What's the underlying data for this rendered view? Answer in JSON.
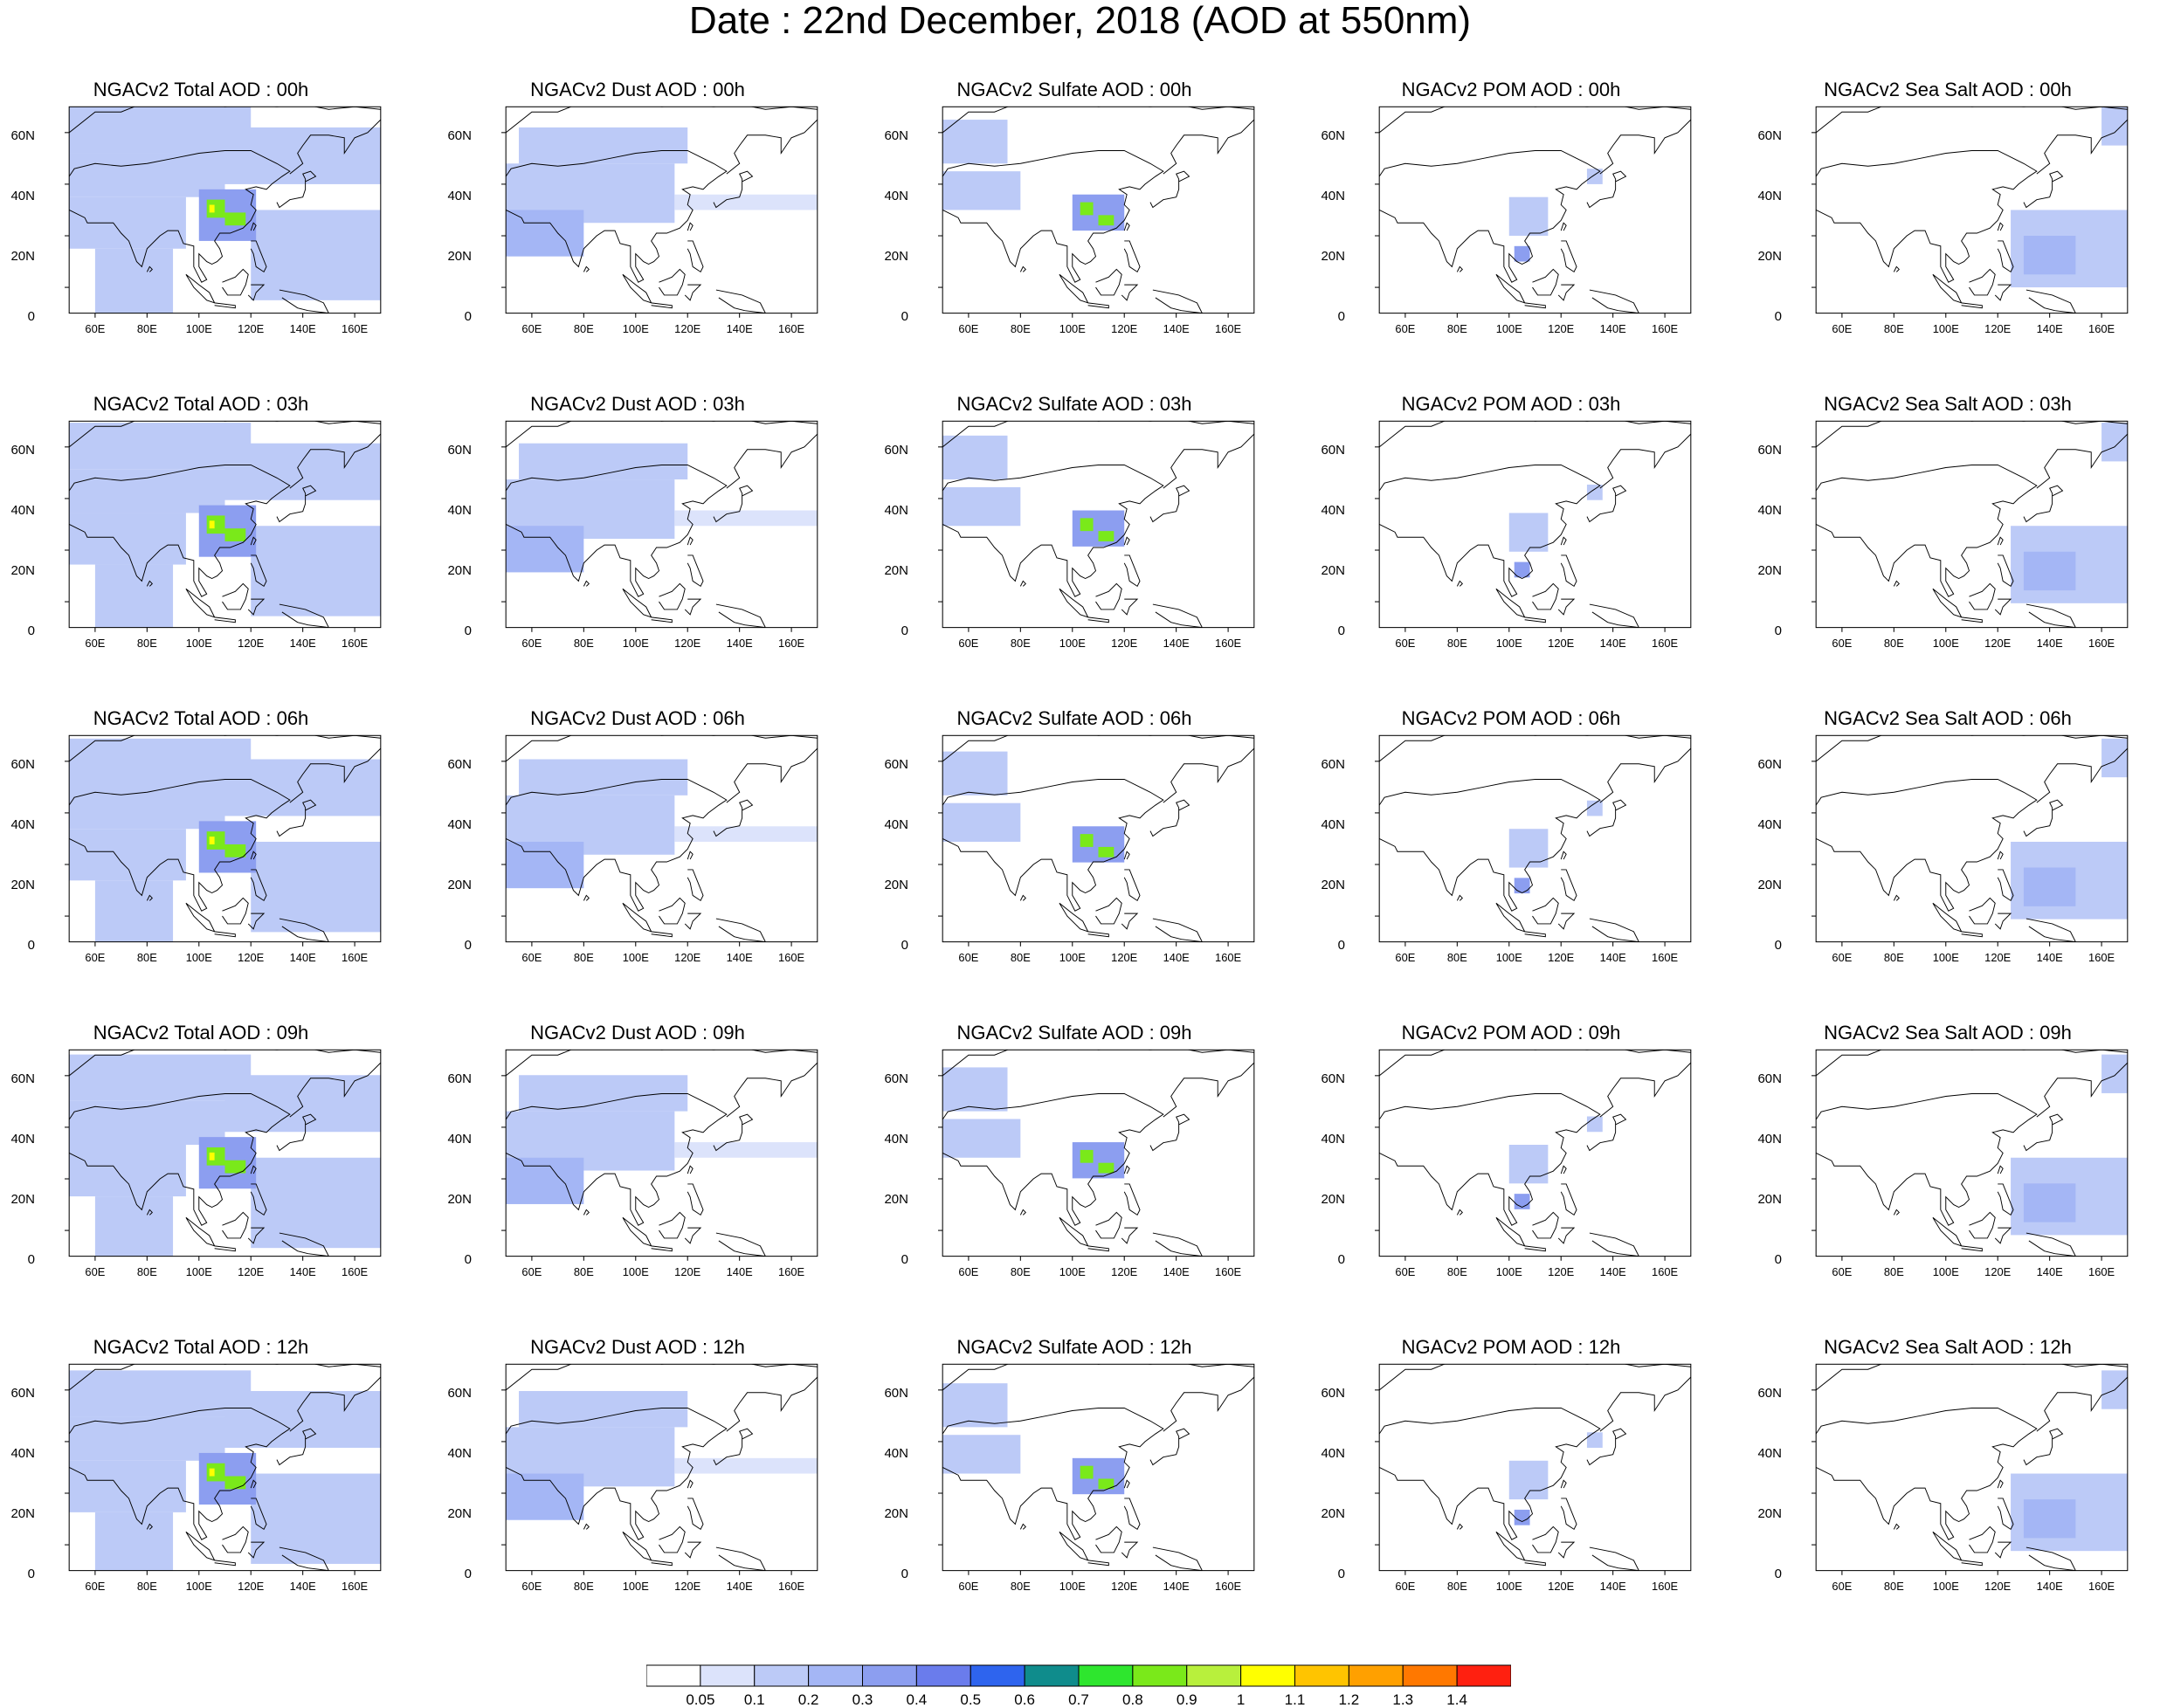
{
  "title": "Date : 22nd December, 2018 (AOD at 550nm)",
  "map_extent": {
    "lon_range": [
      50,
      170
    ],
    "lat_range": [
      -10,
      70
    ]
  },
  "axes": {
    "lon_ticks": [
      60,
      80,
      100,
      120,
      140,
      160
    ],
    "lon_tick_labels": [
      "60E",
      "80E",
      "100E",
      "120E",
      "140E",
      "160E"
    ],
    "lat_ticks": [
      0,
      20,
      40,
      60
    ],
    "lat_tick_labels": [
      "0",
      "20N",
      "40N",
      "60N"
    ]
  },
  "panels": [
    [
      {
        "title": "NGACv2 Total AOD : 00h",
        "species": "total"
      },
      {
        "title": "NGACv2 Dust AOD : 00h",
        "species": "dust"
      },
      {
        "title": "NGACv2 Sulfate AOD : 00h",
        "species": "sulfate"
      },
      {
        "title": "NGACv2 POM AOD : 00h",
        "species": "pom"
      },
      {
        "title": "NGACv2 Sea Salt AOD : 00h",
        "species": "seasalt"
      }
    ],
    [
      {
        "title": "NGACv2 Total AOD : 03h",
        "species": "total"
      },
      {
        "title": "NGACv2 Dust AOD : 03h",
        "species": "dust"
      },
      {
        "title": "NGACv2 Sulfate AOD : 03h",
        "species": "sulfate"
      },
      {
        "title": "NGACv2 POM AOD : 03h",
        "species": "pom"
      },
      {
        "title": "NGACv2 Sea Salt AOD : 03h",
        "species": "seasalt"
      }
    ],
    [
      {
        "title": "NGACv2 Total AOD : 06h",
        "species": "total"
      },
      {
        "title": "NGACv2 Dust AOD : 06h",
        "species": "dust"
      },
      {
        "title": "NGACv2 Sulfate AOD : 06h",
        "species": "sulfate"
      },
      {
        "title": "NGACv2 POM AOD : 06h",
        "species": "pom"
      },
      {
        "title": "NGACv2 Sea Salt AOD : 06h",
        "species": "seasalt"
      }
    ],
    [
      {
        "title": "NGACv2 Total AOD : 09h",
        "species": "total"
      },
      {
        "title": "NGACv2 Dust AOD : 09h",
        "species": "dust"
      },
      {
        "title": "NGACv2 Sulfate AOD : 09h",
        "species": "sulfate"
      },
      {
        "title": "NGACv2 POM AOD : 09h",
        "species": "pom"
      },
      {
        "title": "NGACv2 Sea Salt  AOD : 09h",
        "species": "seasalt"
      }
    ],
    [
      {
        "title": "NGACv2 Total AOD  : 12h",
        "species": "total"
      },
      {
        "title": "NGACv2 Dust AOD : 12h",
        "species": "dust"
      },
      {
        "title": "NGACv2 Sulfate AOD : 12h",
        "species": "sulfate"
      },
      {
        "title": "NGACv2 POM  AOD : 12h",
        "species": "pom"
      },
      {
        "title": "NGACv2 Sea Salt  AOD : 12h",
        "species": "seasalt"
      }
    ]
  ],
  "colorbar": {
    "labels": [
      "0.05",
      "0.1",
      "0.2",
      "0.3",
      "0.4",
      "0.5",
      "0.6",
      "0.7",
      "0.8",
      "0.9",
      "1",
      "1.1",
      "1.2",
      "1.3",
      "1.4"
    ],
    "colors": [
      "#ffffff",
      "#dce3fb",
      "#bccaf7",
      "#a4b6f5",
      "#8c9ef0",
      "#6a7cec",
      "#2e64ee",
      "#0f8c8c",
      "#2ee62e",
      "#7ae91a",
      "#b8f03c",
      "#ffff00",
      "#ffc400",
      "#ffa000",
      "#ff7800",
      "#ff2010"
    ]
  },
  "fields": {
    "total": [
      {
        "lon": [
          50,
          120
        ],
        "lat": [
          52,
          70
        ],
        "v": 0.12
      },
      {
        "lon": [
          50,
          110
        ],
        "lat": [
          35,
          52
        ],
        "v": 0.15
      },
      {
        "lon": [
          50,
          95
        ],
        "lat": [
          15,
          35
        ],
        "v": 0.18
      },
      {
        "lon": [
          60,
          90
        ],
        "lat": [
          -10,
          15
        ],
        "v": 0.1
      },
      {
        "lon": [
          110,
          170
        ],
        "lat": [
          40,
          62
        ],
        "v": 0.11
      },
      {
        "lon": [
          120,
          170
        ],
        "lat": [
          -5,
          30
        ],
        "v": 0.12
      },
      {
        "lon": [
          100,
          122
        ],
        "lat": [
          18,
          38
        ],
        "v": 0.35
      },
      {
        "lon": [
          103,
          110
        ],
        "lat": [
          27,
          34
        ],
        "v": 0.85
      },
      {
        "lon": [
          110,
          118
        ],
        "lat": [
          24,
          29
        ],
        "v": 0.8
      },
      {
        "lon": [
          104,
          106
        ],
        "lat": [
          29,
          32
        ],
        "v": 1.05
      }
    ],
    "dust": [
      {
        "lon": [
          55,
          120
        ],
        "lat": [
          48,
          62
        ],
        "v": 0.1
      },
      {
        "lon": [
          50,
          115
        ],
        "lat": [
          25,
          48
        ],
        "v": 0.14
      },
      {
        "lon": [
          50,
          80
        ],
        "lat": [
          12,
          30
        ],
        "v": 0.22
      },
      {
        "lon": [
          115,
          170
        ],
        "lat": [
          30,
          36
        ],
        "v": 0.08
      }
    ],
    "sulfate": [
      {
        "lon": [
          50,
          75
        ],
        "lat": [
          48,
          65
        ],
        "v": 0.12
      },
      {
        "lon": [
          50,
          80
        ],
        "lat": [
          30,
          45
        ],
        "v": 0.12
      },
      {
        "lon": [
          100,
          120
        ],
        "lat": [
          22,
          36
        ],
        "v": 0.3
      },
      {
        "lon": [
          103,
          108
        ],
        "lat": [
          28,
          33
        ],
        "v": 0.85
      },
      {
        "lon": [
          110,
          116
        ],
        "lat": [
          24,
          28
        ],
        "v": 0.8
      }
    ],
    "pom": [
      {
        "lon": [
          100,
          115
        ],
        "lat": [
          20,
          35
        ],
        "v": 0.15
      },
      {
        "lon": [
          102,
          108
        ],
        "lat": [
          10,
          16
        ],
        "v": 0.3
      },
      {
        "lon": [
          130,
          136
        ],
        "lat": [
          40,
          46
        ],
        "v": 0.1
      }
    ],
    "seasalt": [
      {
        "lon": [
          125,
          170
        ],
        "lat": [
          0,
          30
        ],
        "v": 0.15
      },
      {
        "lon": [
          130,
          150
        ],
        "lat": [
          5,
          20
        ],
        "v": 0.28
      },
      {
        "lon": [
          160,
          170
        ],
        "lat": [
          55,
          70
        ],
        "v": 0.1
      }
    ]
  }
}
